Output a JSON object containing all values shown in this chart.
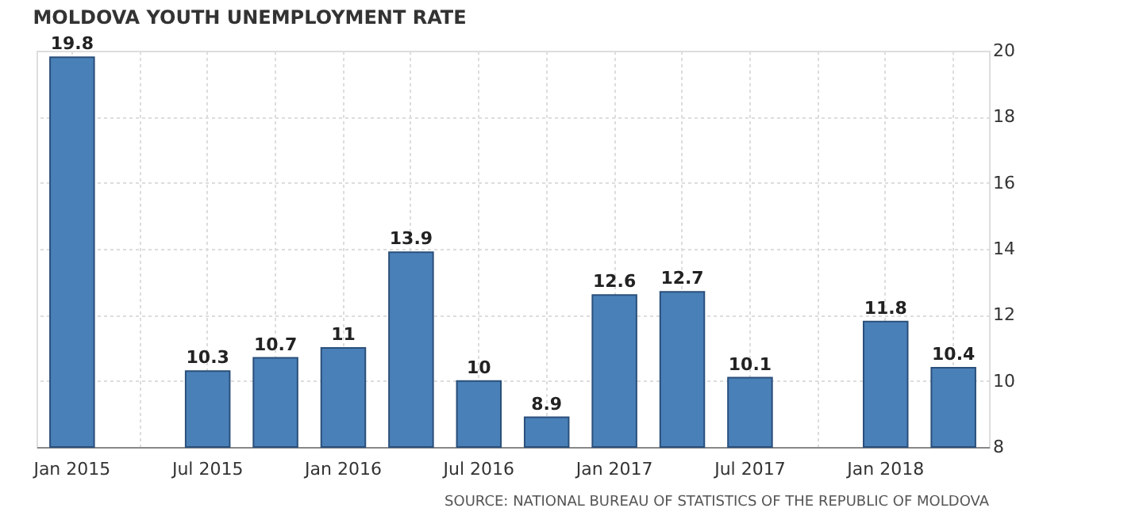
{
  "chart_data": {
    "type": "bar",
    "title": "MOLDOVA YOUTH UNEMPLOYMENT RATE",
    "categories": [
      "Jan 2015",
      null,
      "Jul 2015",
      null,
      "Jan 2016",
      null,
      "Jul 2016",
      null,
      "Jan 2017",
      null,
      "Jul 2017",
      null,
      "Jan 2018",
      null
    ],
    "values": [
      19.8,
      null,
      10.3,
      10.7,
      11,
      13.9,
      10,
      8.9,
      12.6,
      12.7,
      10.1,
      null,
      11.8,
      10.4
    ],
    "color": "#4a80b8",
    "ylim": [
      8,
      20
    ],
    "yticks": [
      8,
      10,
      12,
      14,
      16,
      18,
      20
    ],
    "grid": true,
    "data_labels": true,
    "annotations": [
      "SOURCE: NATIONAL BUREAU OF STATISTICS OF THE REPUBLIC OF MOLDOVA"
    ]
  }
}
